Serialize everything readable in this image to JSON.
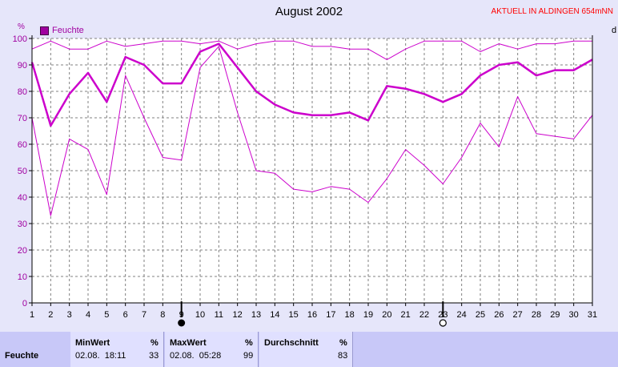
{
  "title": "August 2002",
  "header_note": "AKTUELL IN ALDINGEN 654mNN",
  "legend_label": "Feuchte",
  "y_unit": "%",
  "right_edge_glyph": "d",
  "colors": {
    "series": "#cc00cc",
    "axis": "#000000",
    "grid": "#808080",
    "tick_label": "#a000a0",
    "header_note": "#ff0000"
  },
  "icons": [
    "new-moon-icon",
    "full-moon-icon"
  ],
  "chart_data": {
    "type": "line",
    "title": "August 2002",
    "ylabel": "%",
    "ylim": [
      0,
      100
    ],
    "yticks": [
      0,
      10,
      20,
      30,
      40,
      50,
      60,
      70,
      80,
      90,
      100
    ],
    "x": [
      1,
      2,
      3,
      4,
      5,
      6,
      7,
      8,
      9,
      10,
      11,
      12,
      13,
      14,
      15,
      16,
      17,
      18,
      19,
      20,
      21,
      22,
      23,
      24,
      25,
      26,
      27,
      28,
      29,
      30,
      31
    ],
    "grid": true,
    "legend": "top-left",
    "series": [
      {
        "name": "Feuchte",
        "role": "mean",
        "values": [
          91,
          67,
          79,
          87,
          76,
          93,
          90,
          83,
          83,
          95,
          98,
          89,
          80,
          75,
          72,
          71,
          71,
          72,
          69,
          82,
          81,
          79,
          76,
          79,
          86,
          90,
          91,
          86,
          88,
          88,
          92
        ]
      },
      {
        "role": "max",
        "values": [
          96,
          99,
          96,
          96,
          99,
          97,
          98,
          99,
          99,
          98,
          99,
          96,
          98,
          99,
          99,
          97,
          97,
          96,
          96,
          92,
          96,
          99,
          99,
          99,
          95,
          98,
          96,
          98,
          98,
          99,
          99
        ]
      },
      {
        "role": "min",
        "values": [
          70,
          33,
          62,
          58,
          41,
          86,
          70,
          55,
          54,
          89,
          97,
          72,
          50,
          49,
          43,
          42,
          44,
          43,
          38,
          47,
          58,
          52,
          45,
          55,
          68,
          59,
          78,
          64,
          63,
          62,
          71
        ]
      }
    ],
    "markers": [
      {
        "x": 9,
        "icon": "new-moon-icon"
      },
      {
        "x": 23,
        "icon": "full-moon-icon"
      }
    ]
  },
  "stats": {
    "row_label": "Feuchte",
    "min": {
      "header": "MinWert",
      "unit": "%",
      "datetime": "02.08.  18:11",
      "value": "33"
    },
    "max": {
      "header": "MaxWert",
      "unit": "%",
      "datetime": "02.08.  05:28",
      "value": "99"
    },
    "avg": {
      "header": "Durchschnitt",
      "unit": "%",
      "value": "83"
    }
  }
}
